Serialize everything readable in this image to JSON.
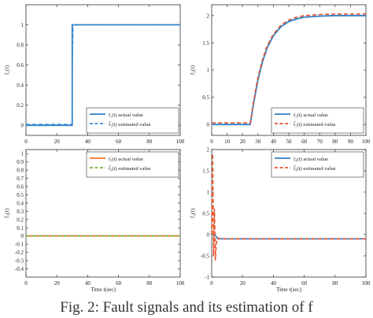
{
  "caption": "Fig. 2: Fault signals and its estimation of f",
  "colors": {
    "actual_blue": "#2f7fc6",
    "estimated_blue": "#3b8fd8",
    "actual_orange": "#e8762d",
    "estimated_green": "#7fb03f",
    "estimated_red": "#e8542c"
  },
  "chart_data": [
    {
      "type": "line",
      "ylabel": "f₁(t)",
      "xlabel": "",
      "xlim": [
        0,
        100
      ],
      "ylim": [
        -0.1,
        1.2
      ],
      "xticks": [
        "0",
        "20",
        "40",
        "60",
        "80",
        "100"
      ],
      "yticks": [
        "0",
        "0.2",
        "0.4",
        "0.6",
        "0.8",
        "1"
      ],
      "legend_position": "bottom-right",
      "series": [
        {
          "name": "f₁(t) actual value",
          "style": "solid",
          "color": "#2f7fc6",
          "x": [
            0,
            30,
            30,
            100
          ],
          "y": [
            0,
            0,
            1,
            1
          ]
        },
        {
          "name": "f̂₁(t) estimated value",
          "style": "dashed",
          "color": "#3b8fd8",
          "x": [
            0,
            29.9,
            30,
            30.5,
            100
          ],
          "y": [
            0.01,
            0.01,
            0.6,
            1,
            1
          ]
        }
      ]
    },
    {
      "type": "line",
      "ylabel": "f₂(t)",
      "xlabel": "",
      "xlim": [
        0,
        100
      ],
      "ylim": [
        -0.2,
        2.2
      ],
      "xticks": [
        "0",
        "10",
        "20",
        "30",
        "40",
        "50",
        "60",
        "70",
        "80",
        "90",
        "100"
      ],
      "yticks": [
        "0",
        "0.5",
        "1",
        "1.5",
        "2"
      ],
      "legend_position": "bottom-right",
      "series": [
        {
          "name": "f₂(t) actual value",
          "style": "solid",
          "color": "#2f7fc6",
          "x": [
            0,
            25,
            27,
            30,
            33,
            36,
            40,
            45,
            50,
            55,
            60,
            70,
            80,
            90,
            100
          ],
          "y": [
            0,
            0,
            0.36,
            0.82,
            1.16,
            1.41,
            1.63,
            1.8,
            1.89,
            1.94,
            1.97,
            1.99,
            2.0,
            2.0,
            2.0
          ]
        },
        {
          "name": "f̂₂(t) estimated value",
          "style": "dashed",
          "color": "#e8542c",
          "x": [
            0,
            25,
            27,
            30,
            33,
            36,
            40,
            45,
            50,
            55,
            60,
            70,
            80,
            90,
            100
          ],
          "y": [
            0.03,
            0.03,
            0.4,
            0.87,
            1.2,
            1.45,
            1.66,
            1.83,
            1.92,
            1.97,
            2.0,
            2.02,
            2.03,
            2.03,
            2.03
          ]
        }
      ]
    },
    {
      "type": "line",
      "ylabel": "f₃(t)",
      "xlabel": "Time t(sec)",
      "xlim": [
        0,
        100
      ],
      "ylim": [
        -0.5,
        1.05
      ],
      "xticks": [
        "0",
        "20",
        "40",
        "60",
        "80",
        "100"
      ],
      "yticks": [
        "-0.4",
        "-0.3",
        "-0.2",
        "-0.1",
        "0",
        "0.1",
        "0.2",
        "0.3",
        "0.4",
        "0.5",
        "0.6",
        "0.7",
        "0.8",
        "0.9",
        "1"
      ],
      "legend_position": "top-right",
      "series": [
        {
          "name": "f₃(t) actual value",
          "style": "solid",
          "color": "#e8762d",
          "x": [
            0,
            100
          ],
          "y": [
            0,
            0
          ]
        },
        {
          "name": "f̂₃(t) estimated value",
          "style": "dashed",
          "color": "#7fb03f",
          "x": [
            0,
            100
          ],
          "y": [
            0,
            0
          ]
        }
      ]
    },
    {
      "type": "line",
      "ylabel": "f₄(t)",
      "xlabel": "Time t(sec)",
      "xlim": [
        0,
        100
      ],
      "ylim": [
        -1,
        2
      ],
      "xticks": [
        "0",
        "20",
        "40",
        "60",
        "80",
        "100"
      ],
      "yticks": [
        "-1",
        "-0.5",
        "0",
        "0.5",
        "1",
        "1.5",
        "2"
      ],
      "legend_position": "top-right",
      "series": [
        {
          "name": "f₄(t) actual value",
          "style": "solid",
          "color": "#2f7fc6",
          "x": [
            0,
            2,
            4,
            100
          ],
          "y": [
            0,
            0,
            -0.1,
            -0.1
          ]
        },
        {
          "name": "f̂₄(t) estimated value",
          "style": "dashed",
          "color": "#e8542c",
          "x": [
            0,
            0.6,
            1.2,
            1.8,
            2.4,
            3,
            4,
            6,
            100
          ],
          "y": [
            0,
            1.9,
            -0.5,
            0.6,
            -0.6,
            -0.2,
            -0.08,
            -0.1,
            -0.1
          ]
        }
      ]
    }
  ]
}
